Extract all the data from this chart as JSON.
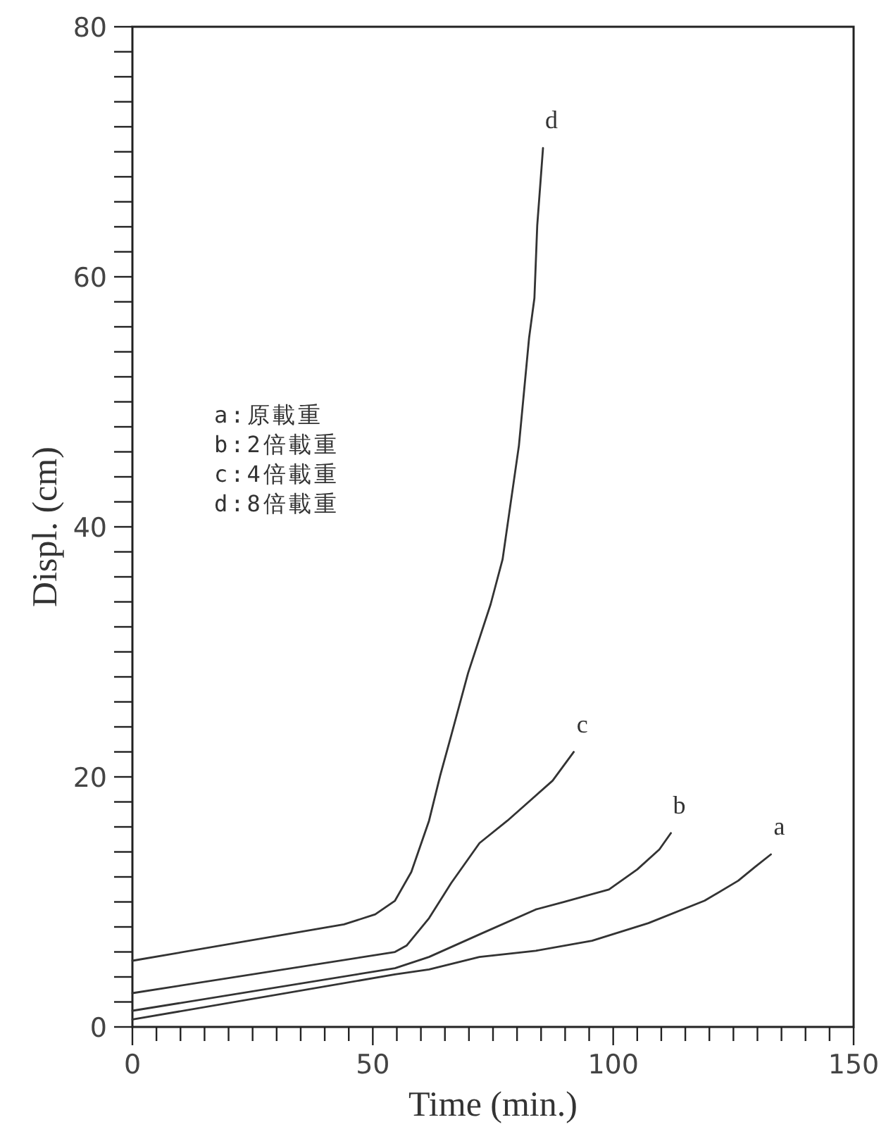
{
  "chart_data": {
    "type": "line",
    "xlabel": "Time (min.)",
    "ylabel": "Displ. (cm)",
    "xlim": [
      0,
      150
    ],
    "ylim": [
      0,
      80
    ],
    "xticks": [
      0,
      {
        "value": 5,
        "label": null
      },
      {
        "value": 10,
        "label": null
      },
      {
        "value": 15,
        "label": null
      },
      {
        "value": 20,
        "label": null
      },
      {
        "value": 25,
        "label": null
      },
      {
        "value": 30,
        "label": null
      },
      {
        "value": 35,
        "label": null
      },
      {
        "value": 40,
        "label": null
      },
      {
        "value": 45,
        "label": null
      },
      50,
      {
        "value": 55,
        "label": null
      },
      {
        "value": 60,
        "label": null
      },
      {
        "value": 65,
        "label": null
      },
      {
        "value": 70,
        "label": null
      },
      {
        "value": 75,
        "label": null
      },
      {
        "value": 80,
        "label": null
      },
      {
        "value": 85,
        "label": null
      },
      {
        "value": 90,
        "label": null
      },
      {
        "value": 95,
        "label": null
      },
      100,
      {
        "value": 105,
        "label": null
      },
      {
        "value": 110,
        "label": null
      },
      {
        "value": 115,
        "label": null
      },
      {
        "value": 120,
        "label": null
      },
      {
        "value": 125,
        "label": null
      },
      {
        "value": 130,
        "label": null
      },
      {
        "value": 135,
        "label": null
      },
      {
        "value": 140,
        "label": null
      },
      {
        "value": 145,
        "label": null
      },
      150
    ],
    "yticks": [
      0,
      {
        "value": 2,
        "label": null
      },
      {
        "value": 4,
        "label": null
      },
      {
        "value": 6,
        "label": null
      },
      {
        "value": 8,
        "label": null
      },
      {
        "value": 10,
        "label": null
      },
      {
        "value": 12,
        "label": null
      },
      {
        "value": 14,
        "label": null
      },
      {
        "value": 16,
        "label": null
      },
      {
        "value": 18,
        "label": null
      },
      20,
      {
        "value": 22,
        "label": null
      },
      {
        "value": 24,
        "label": null
      },
      {
        "value": 26,
        "label": null
      },
      {
        "value": 28,
        "label": null
      },
      {
        "value": 30,
        "label": null
      },
      {
        "value": 32,
        "label": null
      },
      {
        "value": 34,
        "label": null
      },
      {
        "value": 36,
        "label": null
      },
      {
        "value": 38,
        "label": null
      },
      40,
      {
        "value": 42,
        "label": null
      },
      {
        "value": 44,
        "label": null
      },
      {
        "value": 46,
        "label": null
      },
      {
        "value": 48,
        "label": null
      },
      {
        "value": 50,
        "label": null
      },
      {
        "value": 52,
        "label": null
      },
      {
        "value": 54,
        "label": null
      },
      {
        "value": 56,
        "label": null
      },
      {
        "value": 58,
        "label": null
      },
      60,
      {
        "value": 62,
        "label": null
      },
      {
        "value": 64,
        "label": null
      },
      {
        "value": 66,
        "label": null
      },
      {
        "value": 68,
        "label": null
      },
      {
        "value": 70,
        "label": null
      },
      {
        "value": 72,
        "label": null
      },
      {
        "value": 74,
        "label": null
      },
      {
        "value": 76,
        "label": null
      },
      {
        "value": 78,
        "label": null
      },
      80
    ],
    "marker": "none",
    "line_style": "solid",
    "annotations": [
      "a:原載重",
      "b:2倍載重",
      "c:4倍載重",
      "d:8倍載重"
    ],
    "series": [
      {
        "name": "a",
        "color": "#333333",
        "x": [
          0,
          54.6,
          61.7,
          72.2,
          83.9,
          95.6,
          107.3,
          119,
          126,
          129.5,
          132.8
        ],
        "values": [
          0.6,
          4.2,
          4.6,
          5.6,
          6.1,
          6.9,
          8.3,
          10.1,
          11.7,
          12.8,
          13.8
        ]
      },
      {
        "name": "b",
        "color": "#333333",
        "x": [
          0,
          54.6,
          61.7,
          72.2,
          83.9,
          89.7,
          99.1,
          105,
          109.6,
          112
        ],
        "values": [
          1.3,
          4.7,
          5.6,
          7.4,
          9.4,
          10.0,
          11.0,
          12.6,
          14.2,
          15.5
        ]
      },
      {
        "name": "c",
        "color": "#333333",
        "x": [
          0,
          54.6,
          57,
          61.7,
          66.3,
          72.2,
          78,
          82.7,
          87.4,
          91.8
        ],
        "values": [
          2.7,
          6.0,
          6.5,
          8.7,
          11.5,
          14.7,
          16.5,
          18.1,
          19.7,
          22.0
        ]
      },
      {
        "name": "d",
        "color": "#333333",
        "x": [
          0,
          44,
          50.5,
          54.6,
          58,
          61.7,
          64,
          66.3,
          69.8,
          74.5,
          77,
          80.4,
          82.5,
          83.6,
          84.2,
          85.4
        ],
        "values": [
          5.3,
          8.2,
          9.0,
          10.1,
          12.4,
          16.5,
          20.1,
          23.3,
          28.3,
          33.8,
          37.4,
          46.5,
          55.1,
          58.3,
          64.1,
          70.3
        ]
      }
    ]
  }
}
